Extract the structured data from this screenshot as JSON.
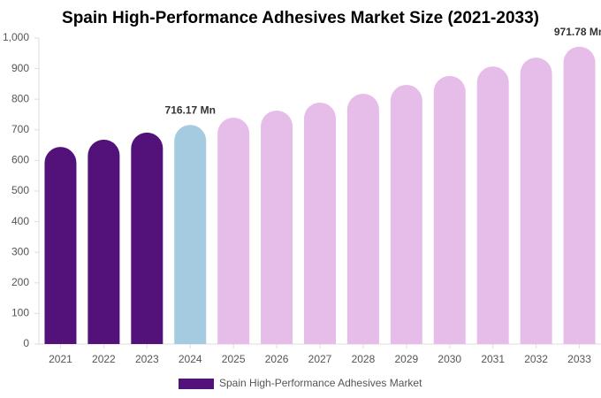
{
  "chart_data": {
    "type": "bar",
    "title": "Spain High-Performance Adhesives Market Size (2021-2033)",
    "categories": [
      "2021",
      "2022",
      "2023",
      "2024",
      "2025",
      "2026",
      "2027",
      "2028",
      "2029",
      "2030",
      "2031",
      "2032",
      "2033"
    ],
    "series": [
      {
        "name": "Spain High-Performance Adhesives Market",
        "color": "#53127a",
        "colors": [
          "#53127a",
          "#53127a",
          "#53127a",
          "#a5cbe0",
          "#e6bde9",
          "#e6bde9",
          "#e6bde9",
          "#e6bde9",
          "#e6bde9",
          "#e6bde9",
          "#e6bde9",
          "#e6bde9",
          "#e6bde9"
        ],
        "values": [
          644,
          668,
          691,
          716.17,
          740,
          763,
          789,
          818,
          847,
          876,
          907,
          936,
          971.78
        ],
        "value_labels": [
          null,
          null,
          null,
          "716.17 Mn",
          null,
          null,
          null,
          null,
          null,
          null,
          null,
          null,
          "971.78 Mn"
        ]
      }
    ],
    "ylim": [
      0,
      1000
    ],
    "yticks": [
      0,
      100,
      200,
      300,
      400,
      500,
      600,
      700,
      800,
      900,
      {
        "value": 1000,
        "label": "1,000"
      }
    ],
    "grid": false,
    "legend": "bottom"
  }
}
